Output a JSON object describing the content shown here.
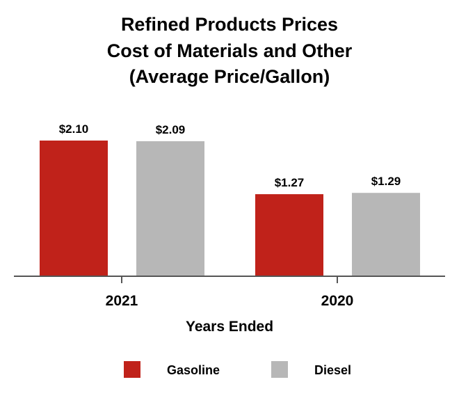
{
  "chart_data": {
    "type": "bar",
    "title_lines": [
      "Refined Products Prices",
      "Cost of Materials and Other",
      "(Average Price/Gallon)"
    ],
    "xlabel": "Years Ended",
    "ylabel": "",
    "categories": [
      "2021",
      "2020"
    ],
    "series": [
      {
        "name": "Gasoline",
        "color": "#C0221A",
        "values": [
          2.1,
          1.27
        ],
        "labels": [
          "$2.10",
          "$1.27"
        ]
      },
      {
        "name": "Diesel",
        "color": "#B7B7B7",
        "values": [
          2.09,
          1.29
        ],
        "labels": [
          "$2.09",
          "$1.29"
        ]
      }
    ],
    "ylim": [
      0,
      2.1
    ],
    "grid": false,
    "legend_position": "bottom"
  }
}
